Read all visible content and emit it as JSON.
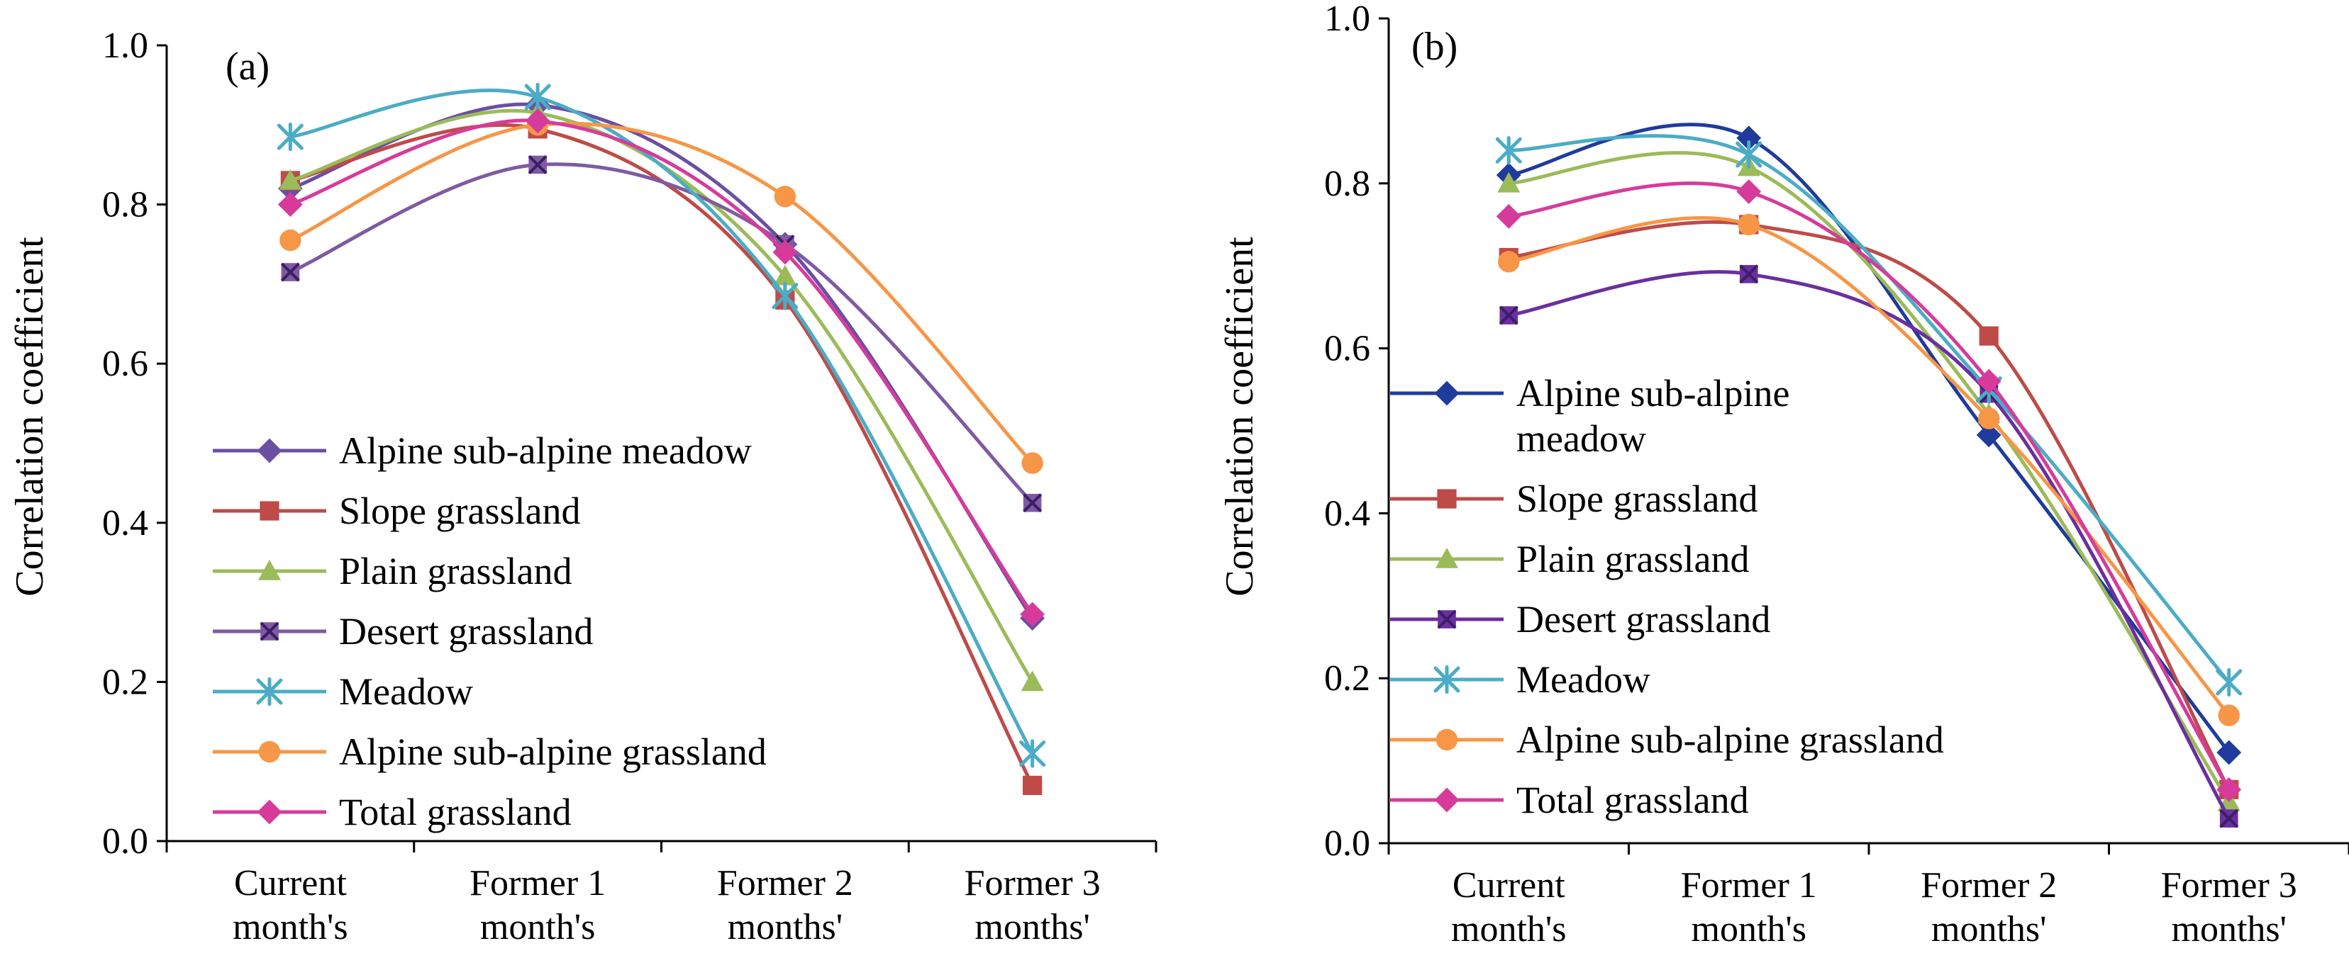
{
  "chart_data": [
    {
      "type": "line",
      "title": "",
      "panel_label": "(a)",
      "ylabel": "Correlation coefficient",
      "xlabel": "",
      "ylim": [
        0,
        1.0
      ],
      "yticks": [
        "0.0",
        "0.2",
        "0.4",
        "0.6",
        "0.8",
        "1.0"
      ],
      "categories": [
        [
          "Current",
          "month's"
        ],
        [
          "Former 1",
          "month's"
        ],
        [
          "Former 2",
          "months'"
        ],
        [
          "Former 3",
          "months'"
        ]
      ],
      "legend_position": "lower-left",
      "grid": false,
      "smooth": true,
      "series": [
        {
          "name": "Alpine sub-alpine meadow",
          "legend_lines": [
            "Alpine sub-alpine meadow"
          ],
          "color": "#6a4fa3",
          "marker": "diamond",
          "values": [
            0.82,
            0.925,
            0.75,
            0.28
          ]
        },
        {
          "name": "Slope grassland",
          "legend_lines": [
            "Slope grassland"
          ],
          "color": "#be4b48",
          "marker": "square",
          "values": [
            0.83,
            0.895,
            0.68,
            0.07
          ]
        },
        {
          "name": "Plain grassland",
          "legend_lines": [
            "Plain grassland"
          ],
          "color": "#9bbb59",
          "marker": "triangle",
          "values": [
            0.83,
            0.915,
            0.71,
            0.2
          ]
        },
        {
          "name": "Desert grassland",
          "legend_lines": [
            "Desert grassland"
          ],
          "color": "#7f5aa2",
          "marker": "xsquare",
          "values": [
            0.715,
            0.85,
            0.75,
            0.425
          ]
        },
        {
          "name": "Meadow",
          "legend_lines": [
            "Meadow"
          ],
          "color": "#4bacc6",
          "marker": "asterisk",
          "values": [
            0.885,
            0.935,
            0.685,
            0.11
          ]
        },
        {
          "name": "Alpine sub-alpine grassland",
          "legend_lines": [
            "Alpine sub-alpine grassland"
          ],
          "color": "#f79646",
          "marker": "circle",
          "values": [
            0.755,
            0.9,
            0.81,
            0.475
          ]
        },
        {
          "name": "Total grassland",
          "legend_lines": [
            "Total grassland"
          ],
          "color": "#d63b9c",
          "marker": "diamond",
          "values": [
            0.8,
            0.905,
            0.74,
            0.285
          ]
        }
      ]
    },
    {
      "type": "line",
      "title": "",
      "panel_label": "(b)",
      "ylabel": "Correlation coefficient",
      "xlabel": "",
      "ylim": [
        0,
        1.0
      ],
      "yticks": [
        "0.0",
        "0.2",
        "0.4",
        "0.6",
        "0.8",
        "1.0"
      ],
      "categories": [
        [
          "Current",
          "month's"
        ],
        [
          "Former 1",
          "month's"
        ],
        [
          "Former 2",
          "months'"
        ],
        [
          "Former 3",
          "months'"
        ]
      ],
      "legend_position": "lower-left",
      "grid": false,
      "smooth": true,
      "series": [
        {
          "name": "Alpine sub-alpine meadow",
          "legend_lines": [
            "Alpine sub-alpine",
            "meadow"
          ],
          "color": "#1f3b9c",
          "marker": "diamond",
          "values": [
            0.81,
            0.855,
            0.495,
            0.11
          ]
        },
        {
          "name": "Slope grassland",
          "legend_lines": [
            "Slope grassland"
          ],
          "color": "#be4b48",
          "marker": "square",
          "values": [
            0.71,
            0.75,
            0.615,
            0.065
          ]
        },
        {
          "name": "Plain grassland",
          "legend_lines": [
            "Plain grassland"
          ],
          "color": "#9bbb59",
          "marker": "triangle",
          "values": [
            0.8,
            0.82,
            0.52,
            0.05
          ]
        },
        {
          "name": "Desert grassland",
          "legend_lines": [
            "Desert grassland"
          ],
          "color": "#6a2fa0",
          "marker": "xsquare",
          "values": [
            0.64,
            0.69,
            0.545,
            0.03
          ]
        },
        {
          "name": "Meadow",
          "legend_lines": [
            "Meadow"
          ],
          "color": "#4bacc6",
          "marker": "asterisk",
          "values": [
            0.84,
            0.835,
            0.55,
            0.195
          ]
        },
        {
          "name": "Alpine sub-alpine grassland",
          "legend_lines": [
            "Alpine sub-alpine grassland"
          ],
          "color": "#f79646",
          "marker": "circle",
          "values": [
            0.705,
            0.75,
            0.515,
            0.155
          ]
        },
        {
          "name": "Total grassland",
          "legend_lines": [
            "Total grassland"
          ],
          "color": "#d63b9c",
          "marker": "diamond",
          "values": [
            0.76,
            0.79,
            0.56,
            0.065
          ]
        }
      ]
    }
  ]
}
